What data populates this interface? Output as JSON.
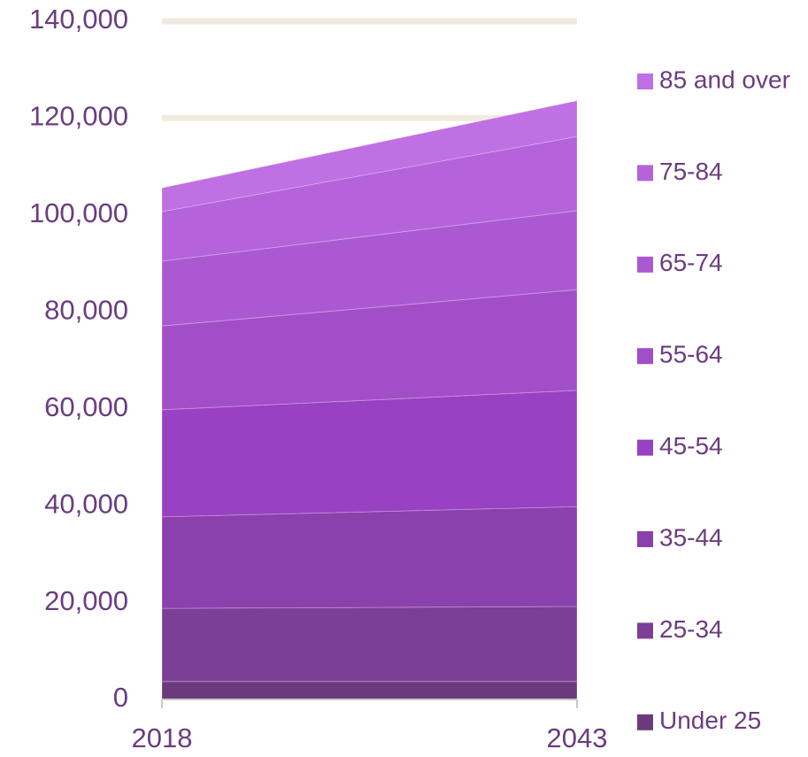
{
  "chart_data": {
    "type": "stacked_area",
    "categories": [
      "2018",
      "2043"
    ],
    "series": [
      {
        "name": "Under 25",
        "color": "#6b3a7d",
        "values": [
          3700,
          3700
        ]
      },
      {
        "name": "25-34",
        "color": "#7b3f98",
        "values": [
          15100,
          15500
        ]
      },
      {
        "name": "35-44",
        "color": "#8a40ad",
        "values": [
          18900,
          20600
        ]
      },
      {
        "name": "45-54",
        "color": "#9841c2",
        "values": [
          22100,
          24000
        ]
      },
      {
        "name": "55-64",
        "color": "#a34ec9",
        "values": [
          17300,
          20800
        ]
      },
      {
        "name": "65-74",
        "color": "#ab59d3",
        "values": [
          13400,
          16300
        ]
      },
      {
        "name": "75-84",
        "color": "#b463da",
        "values": [
          10200,
          15300
        ]
      },
      {
        "name": "85 and over",
        "color": "#bf70e3",
        "values": [
          4900,
          7400
        ]
      }
    ],
    "ylim": [
      0,
      140000
    ],
    "yticks": [
      0,
      {
        "value": 20000,
        "label": "20,000"
      },
      {
        "value": 40000,
        "label": "40,000"
      },
      {
        "value": 60000,
        "label": "60,000"
      },
      {
        "value": 80000,
        "label": "80,000"
      },
      {
        "value": 100000,
        "label": "100,000"
      },
      {
        "value": 120000,
        "label": "120,000"
      },
      {
        "value": 140000,
        "label": "140,000"
      }
    ],
    "grid": true,
    "legend": "right"
  }
}
